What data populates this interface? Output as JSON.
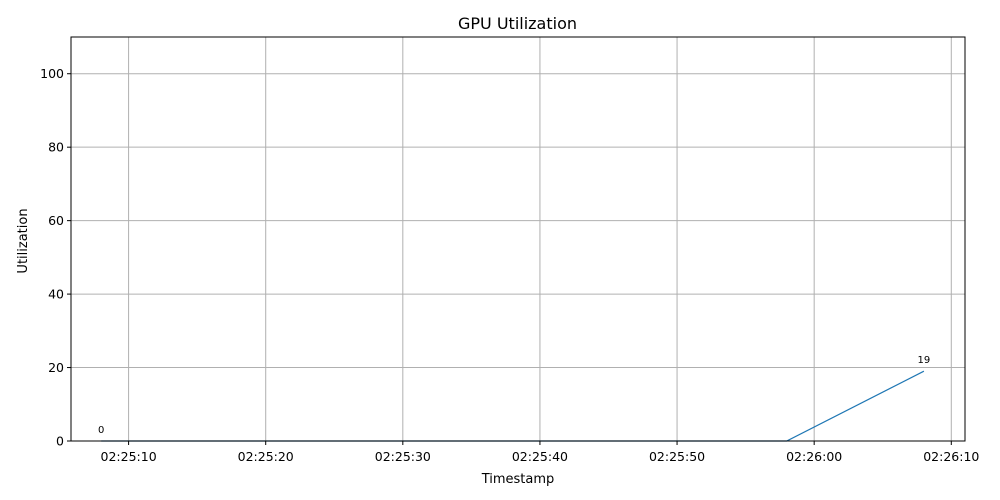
{
  "chart_data": {
    "type": "line",
    "title": "GPU Utilization",
    "xlabel": "Timestamp",
    "ylabel": "Utilization",
    "x_ticks": [
      {
        "time": "02:25:10",
        "label": "02:25:10"
      },
      {
        "time": "02:25:20",
        "label": "02:25:20"
      },
      {
        "time": "02:25:30",
        "label": "02:25:30"
      },
      {
        "time": "02:25:40",
        "label": "02:25:40"
      },
      {
        "time": "02:25:50",
        "label": "02:25:50"
      },
      {
        "time": "02:26:00",
        "label": "02:26:00"
      },
      {
        "time": "02:26:10",
        "label": "02:26:10"
      }
    ],
    "y_ticks": [
      0,
      20,
      40,
      60,
      80,
      100
    ],
    "xlim": [
      "02:25:05.8",
      "02:26:11.0"
    ],
    "ylim": [
      0,
      110
    ],
    "grid": true,
    "line_color": "#1f77b4",
    "series": [
      {
        "x": [
          "02:25:08",
          "02:25:58",
          "02:26:08"
        ],
        "values": [
          0,
          0,
          19
        ]
      }
    ],
    "data_labels": [
      {
        "x": "02:25:08",
        "y": 0,
        "text": "0"
      },
      {
        "x": "02:26:08",
        "y": 19,
        "text": "19"
      }
    ]
  }
}
